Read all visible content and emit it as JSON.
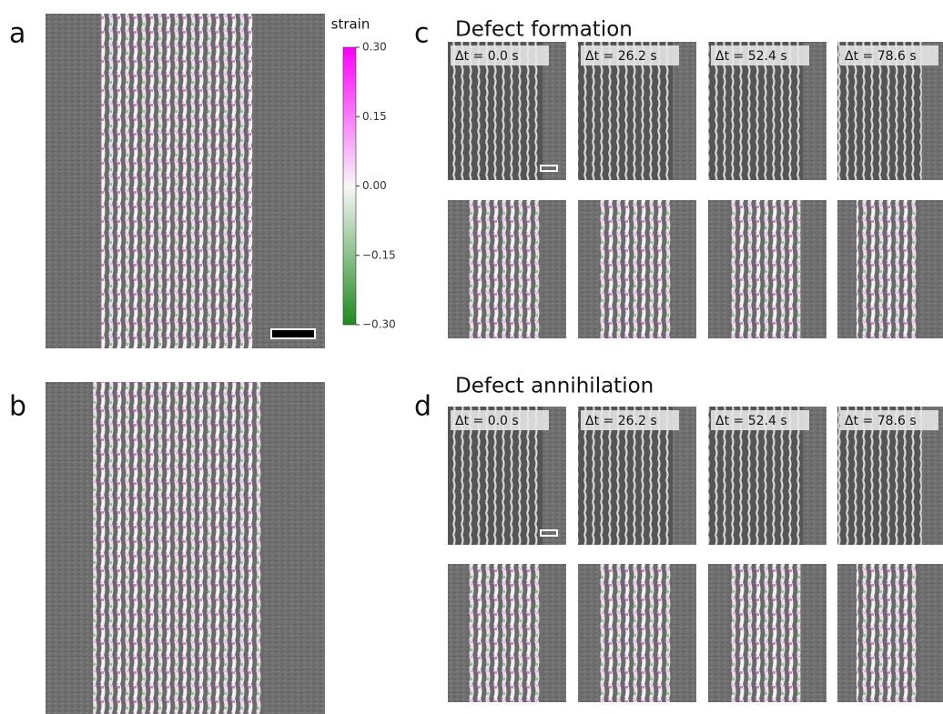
{
  "panels": {
    "a": {
      "label": "a"
    },
    "b": {
      "label": "b"
    },
    "c": {
      "label": "c",
      "title": "Defect formation",
      "times": [
        "Δt = 0.0 s",
        "Δt = 26.2 s",
        "Δt = 52.4 s",
        "Δt = 78.6 s"
      ]
    },
    "d": {
      "label": "d",
      "title": "Defect annihilation",
      "times": [
        "Δt = 0.0 s",
        "Δt = 26.2 s",
        "Δt = 52.4 s",
        "Δt = 78.6 s"
      ]
    }
  },
  "colorbar": {
    "label": "strain",
    "lim": [
      -0.3,
      0.3
    ],
    "ticks": [
      {
        "value": 0.3,
        "label": "0.30"
      },
      {
        "value": 0.15,
        "label": "0.15"
      },
      {
        "value": 0,
        "label": "0.00"
      },
      {
        "value": -0.15,
        "label": "−0.15"
      },
      {
        "value": -0.3,
        "label": "−0.30"
      }
    ]
  }
}
